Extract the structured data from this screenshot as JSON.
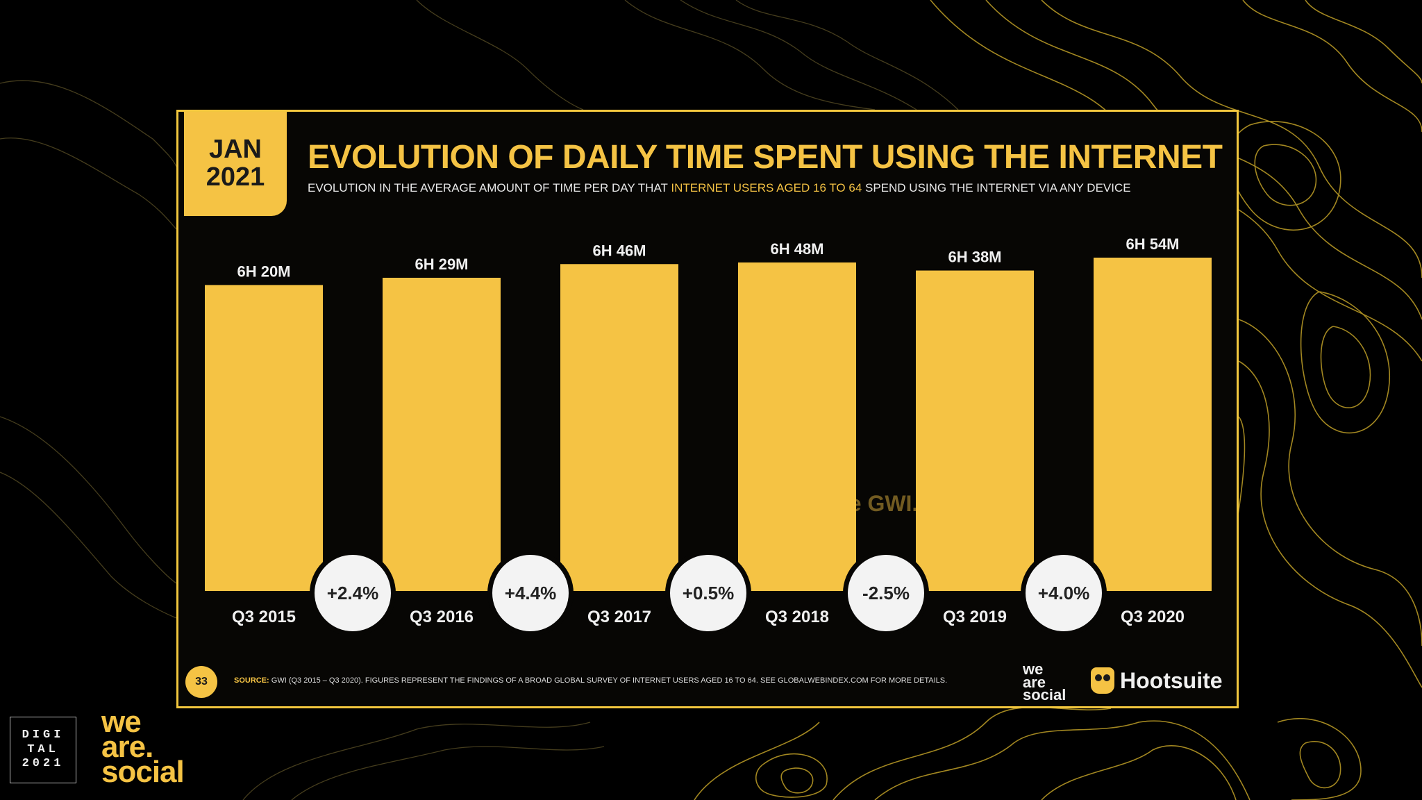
{
  "header": {
    "date_month": "JAN",
    "date_year": "2021",
    "title": "EVOLUTION OF DAILY TIME SPENT USING THE INTERNET",
    "subtitle_pre": "EVOLUTION IN THE AVERAGE AMOUNT OF TIME PER DAY THAT ",
    "subtitle_highlight": "INTERNET USERS AGED 16 TO 64",
    "subtitle_post": " SPEND USING THE INTERNET VIA ANY DEVICE"
  },
  "chart_data": {
    "type": "bar",
    "categories": [
      "Q3 2015",
      "Q3 2016",
      "Q3 2017",
      "Q3 2018",
      "Q3 2019",
      "Q3 2020"
    ],
    "values_minutes": [
      380,
      389,
      406,
      408,
      398,
      414
    ],
    "value_labels": [
      "6H 20M",
      "6H 29M",
      "6H 46M",
      "6H 48M",
      "6H 38M",
      "6H 54M"
    ],
    "changes": [
      "+2.4%",
      "+4.4%",
      "+0.5%",
      "-2.5%",
      "+4.0%"
    ],
    "ylim": [
      0,
      414
    ],
    "grid": false,
    "colors": {
      "bar": "#f5c344",
      "change_circle": "#f3f3f3"
    }
  },
  "watermark": {
    "text": "Hootsuite GWI."
  },
  "footer": {
    "page_number": "33",
    "source_label": "SOURCE:",
    "source_text": " GWI (Q3 2015 – Q3 2020). FIGURES REPRESENT THE FINDINGS OF A BROAD GLOBAL SURVEY OF INTERNET USERS AGED 16 TO 64. SEE GLOBALWEBINDEX.COM FOR MORE DETAILS.",
    "brand_we": "we",
    "brand_are": "are",
    "brand_social": "social",
    "brand_hootsuite": "Hootsuite"
  },
  "corner": {
    "digital_line1": "DIGI",
    "digital_line2": "TAL",
    "digital_line3": "2021",
    "we": "we",
    "are": "are.",
    "social": "social"
  }
}
